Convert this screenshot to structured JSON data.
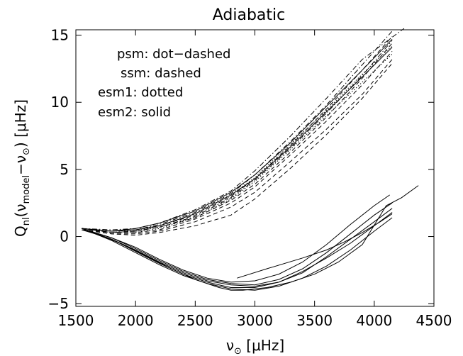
{
  "chart_data": {
    "type": "line",
    "title": "Adiabatic",
    "xlabel": {
      "base": "ν",
      "sub": "⊙",
      "unit": "[μHz]"
    },
    "ylabel": {
      "q": "Q",
      "q_sub": "nl",
      "open": "(",
      "nu": "ν",
      "model_sub": "model",
      "minus": "−",
      "nu2": "ν",
      "sun_sub": "⊙",
      "close": ")",
      "unit": "[μHz]"
    },
    "xlim": [
      1500,
      4500
    ],
    "ylim": [
      -5.2,
      15.4
    ],
    "xticks": [
      1500,
      2000,
      2500,
      3000,
      3500,
      4000,
      4500
    ],
    "xtick_labels": [
      "1500",
      "2000",
      "2500",
      "3000",
      "3500",
      "4000",
      "4500"
    ],
    "yticks": [
      -5,
      0,
      5,
      10,
      15
    ],
    "ytick_labels": [
      "−5",
      "0",
      "5",
      "10",
      "15"
    ],
    "grid": false,
    "legend_text": [
      "psm: dot−dashed",
      "ssm: dashed",
      "esm1: dotted",
      "esm2: solid"
    ],
    "series": [
      {
        "style": "dotdash",
        "x": [
          1550,
          1800,
          2000,
          2200,
          2500,
          2800,
          3000,
          3300,
          3600,
          3900,
          4150
        ],
        "y": [
          0.6,
          0.4,
          0.5,
          0.9,
          1.8,
          3.2,
          4.6,
          7.1,
          9.8,
          12.8,
          15.3
        ]
      },
      {
        "style": "dotdash",
        "x": [
          1550,
          1800,
          2000,
          2200,
          2500,
          2800,
          3000,
          3300,
          3600,
          3900,
          4250
        ],
        "y": [
          0.6,
          0.5,
          0.6,
          1.0,
          2.0,
          3.4,
          4.9,
          7.5,
          10.3,
          13.2,
          15.5
        ]
      },
      {
        "style": "dotdash",
        "x": [
          1550,
          1800,
          2000,
          2200,
          2500,
          2800,
          3000,
          3300,
          3600,
          3900,
          4150
        ],
        "y": [
          0.6,
          0.3,
          0.4,
          0.7,
          1.5,
          2.9,
          4.2,
          6.6,
          9.2,
          12.0,
          14.6
        ]
      },
      {
        "style": "dashed",
        "x": [
          1550,
          1800,
          2000,
          2200,
          2500,
          2800,
          3000,
          3300,
          3600,
          3900,
          4150
        ],
        "y": [
          0.6,
          0.3,
          0.3,
          0.5,
          1.3,
          2.5,
          3.7,
          6.1,
          8.6,
          11.3,
          13.8
        ]
      },
      {
        "style": "dashed",
        "x": [
          1550,
          1800,
          2000,
          2200,
          2500,
          2800,
          3000,
          3300,
          3600,
          3900,
          4150
        ],
        "y": [
          0.5,
          0.2,
          0.2,
          0.4,
          1.1,
          2.2,
          3.3,
          5.6,
          8.0,
          10.6,
          13.2
        ]
      },
      {
        "style": "dashed",
        "x": [
          1550,
          1800,
          2000,
          2200,
          2500,
          2800,
          3000,
          3300,
          3600,
          3900,
          4150
        ],
        "y": [
          0.6,
          0.4,
          0.5,
          0.8,
          1.6,
          3.0,
          4.3,
          6.8,
          9.5,
          12.4,
          14.9
        ]
      },
      {
        "style": "dashed",
        "x": [
          1550,
          1800,
          2000,
          2200,
          2500,
          2800,
          3000,
          3300,
          3600,
          3900,
          4150
        ],
        "y": [
          0.6,
          0.2,
          0.1,
          0.3,
          0.8,
          1.6,
          2.8,
          5.1,
          7.6,
          10.3,
          12.9
        ]
      },
      {
        "style": "dashed",
        "x": [
          1550,
          1800,
          2000,
          2200,
          2500,
          2800,
          3000,
          3300,
          3600,
          3900,
          4150
        ],
        "y": [
          0.6,
          0.3,
          0.4,
          0.7,
          1.4,
          2.7,
          3.9,
          6.3,
          8.9,
          11.8,
          14.4
        ]
      },
      {
        "style": "dotted",
        "x": [
          1550,
          1800,
          2000,
          2200,
          2500,
          2800,
          3000,
          3300,
          3600,
          3900,
          4150
        ],
        "y": [
          0.6,
          0.4,
          0.4,
          0.8,
          1.7,
          3.1,
          4.4,
          6.9,
          9.4,
          12.1,
          14.2
        ]
      },
      {
        "style": "dotted",
        "x": [
          1550,
          1800,
          2000,
          2200,
          2500,
          2800,
          3000,
          3300,
          3600,
          3900,
          4150
        ],
        "y": [
          0.6,
          0.3,
          0.3,
          0.6,
          1.4,
          2.8,
          4.1,
          6.5,
          9.0,
          11.5,
          13.6
        ]
      },
      {
        "style": "solid",
        "x": [
          1550,
          1800,
          2000,
          2200,
          2500,
          2800,
          3000,
          3300,
          3600,
          3900,
          4150
        ],
        "y": [
          0.6,
          0.4,
          0.5,
          0.8,
          1.7,
          3.1,
          4.3,
          6.7,
          9.3,
          11.9,
          14.1
        ]
      },
      {
        "style": "solid",
        "x": [
          1550,
          1800,
          2000,
          2200,
          2500,
          2800,
          3000,
          3300,
          3600,
          3900,
          4150
        ],
        "y": [
          0.6,
          0.4,
          0.6,
          1.0,
          1.9,
          3.3,
          4.6,
          7.0,
          9.7,
          12.4,
          14.7
        ]
      },
      {
        "style": "solid",
        "x": [
          1550,
          1800,
          2000,
          2200,
          2400,
          2600,
          2800,
          3000,
          3200,
          3400,
          3600,
          3800,
          4000,
          4150
        ],
        "y": [
          0.6,
          -0.2,
          -1.0,
          -1.9,
          -2.7,
          -3.3,
          -3.6,
          -3.7,
          -3.4,
          -2.7,
          -1.5,
          -0.2,
          1.1,
          2.1
        ]
      },
      {
        "style": "solid",
        "x": [
          1550,
          1800,
          2000,
          2200,
          2400,
          2600,
          2800,
          3000,
          3200,
          3400,
          3600,
          3800,
          4000,
          4130
        ],
        "y": [
          0.6,
          -0.1,
          -0.8,
          -1.7,
          -2.5,
          -3.1,
          -3.4,
          -3.3,
          -2.8,
          -1.9,
          -0.6,
          0.9,
          2.3,
          3.1
        ]
      },
      {
        "style": "solid",
        "x": [
          1550,
          1800,
          2000,
          2200,
          2400,
          2600,
          2800,
          3000,
          3200,
          3400,
          3600,
          3800,
          4000,
          4150
        ],
        "y": [
          0.6,
          -0.3,
          -1.2,
          -2.1,
          -2.9,
          -3.5,
          -3.9,
          -4.0,
          -3.7,
          -3.1,
          -2.2,
          -1.0,
          0.4,
          1.4
        ]
      },
      {
        "style": "solid",
        "x": [
          1550,
          1800,
          2000,
          2200,
          2400,
          2600,
          2800,
          3000,
          3200,
          3400,
          3600,
          3800,
          4000,
          4150
        ],
        "y": [
          0.6,
          -0.2,
          -1.1,
          -2.0,
          -2.8,
          -3.4,
          -3.8,
          -3.8,
          -3.4,
          -2.6,
          -1.6,
          -0.5,
          0.8,
          1.8
        ]
      },
      {
        "style": "solid",
        "x": [
          1550,
          1700,
          1900,
          2100,
          2300,
          2500,
          2700,
          2800,
          2900,
          3100,
          3300,
          3500,
          3700,
          3900,
          4100,
          4230,
          4370
        ],
        "y": [
          0.5,
          0.1,
          -0.6,
          -1.5,
          -2.4,
          -3.2,
          -3.8,
          -4.0,
          -4.0,
          -3.8,
          -3.4,
          -2.8,
          -1.9,
          -0.6,
          2.3,
          2.9,
          3.8
        ]
      },
      {
        "style": "solid",
        "x": [
          1550,
          1800,
          2000,
          2200,
          2400,
          2600,
          2800,
          3000,
          3200,
          3400,
          3600,
          3800,
          4000,
          4150
        ],
        "y": [
          0.6,
          -0.1,
          -0.9,
          -1.8,
          -2.6,
          -3.2,
          -3.5,
          -3.6,
          -3.2,
          -2.4,
          -1.2,
          0.2,
          1.6,
          2.5
        ]
      },
      {
        "style": "solid",
        "x": [
          2850,
          3100,
          3400,
          3600,
          3750,
          3900,
          4050,
          4150
        ],
        "y": [
          -3.1,
          -2.4,
          -1.6,
          -1.0,
          -0.4,
          0.3,
          1.1,
          1.7
        ]
      }
    ]
  }
}
